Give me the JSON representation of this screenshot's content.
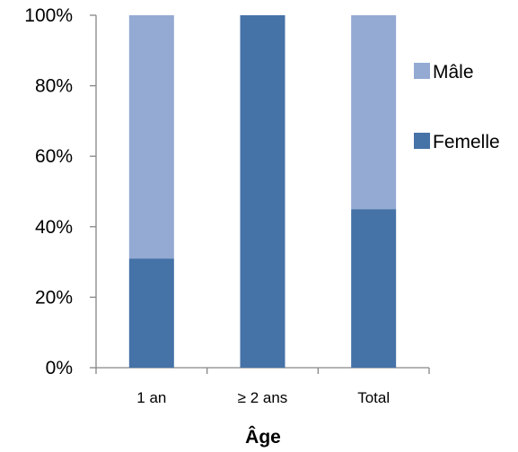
{
  "chart_data": {
    "type": "bar",
    "stacked": true,
    "normalized": true,
    "categories": [
      "1 an",
      "≥ 2 ans",
      "Total"
    ],
    "series": [
      {
        "name": "Femelle",
        "values": [
          31,
          100,
          45
        ],
        "color": "#4572a7"
      },
      {
        "name": "Mâle",
        "values": [
          69,
          0,
          55
        ],
        "color": "#94aad3"
      }
    ],
    "xlabel": "Âge",
    "ylabel": "",
    "ylim": [
      0,
      100
    ],
    "yticks": [
      "0%",
      "20%",
      "40%",
      "60%",
      "80%",
      "100%"
    ],
    "grid": false,
    "legend": {
      "position": "right",
      "order": [
        "Mâle",
        "Femelle"
      ]
    }
  }
}
